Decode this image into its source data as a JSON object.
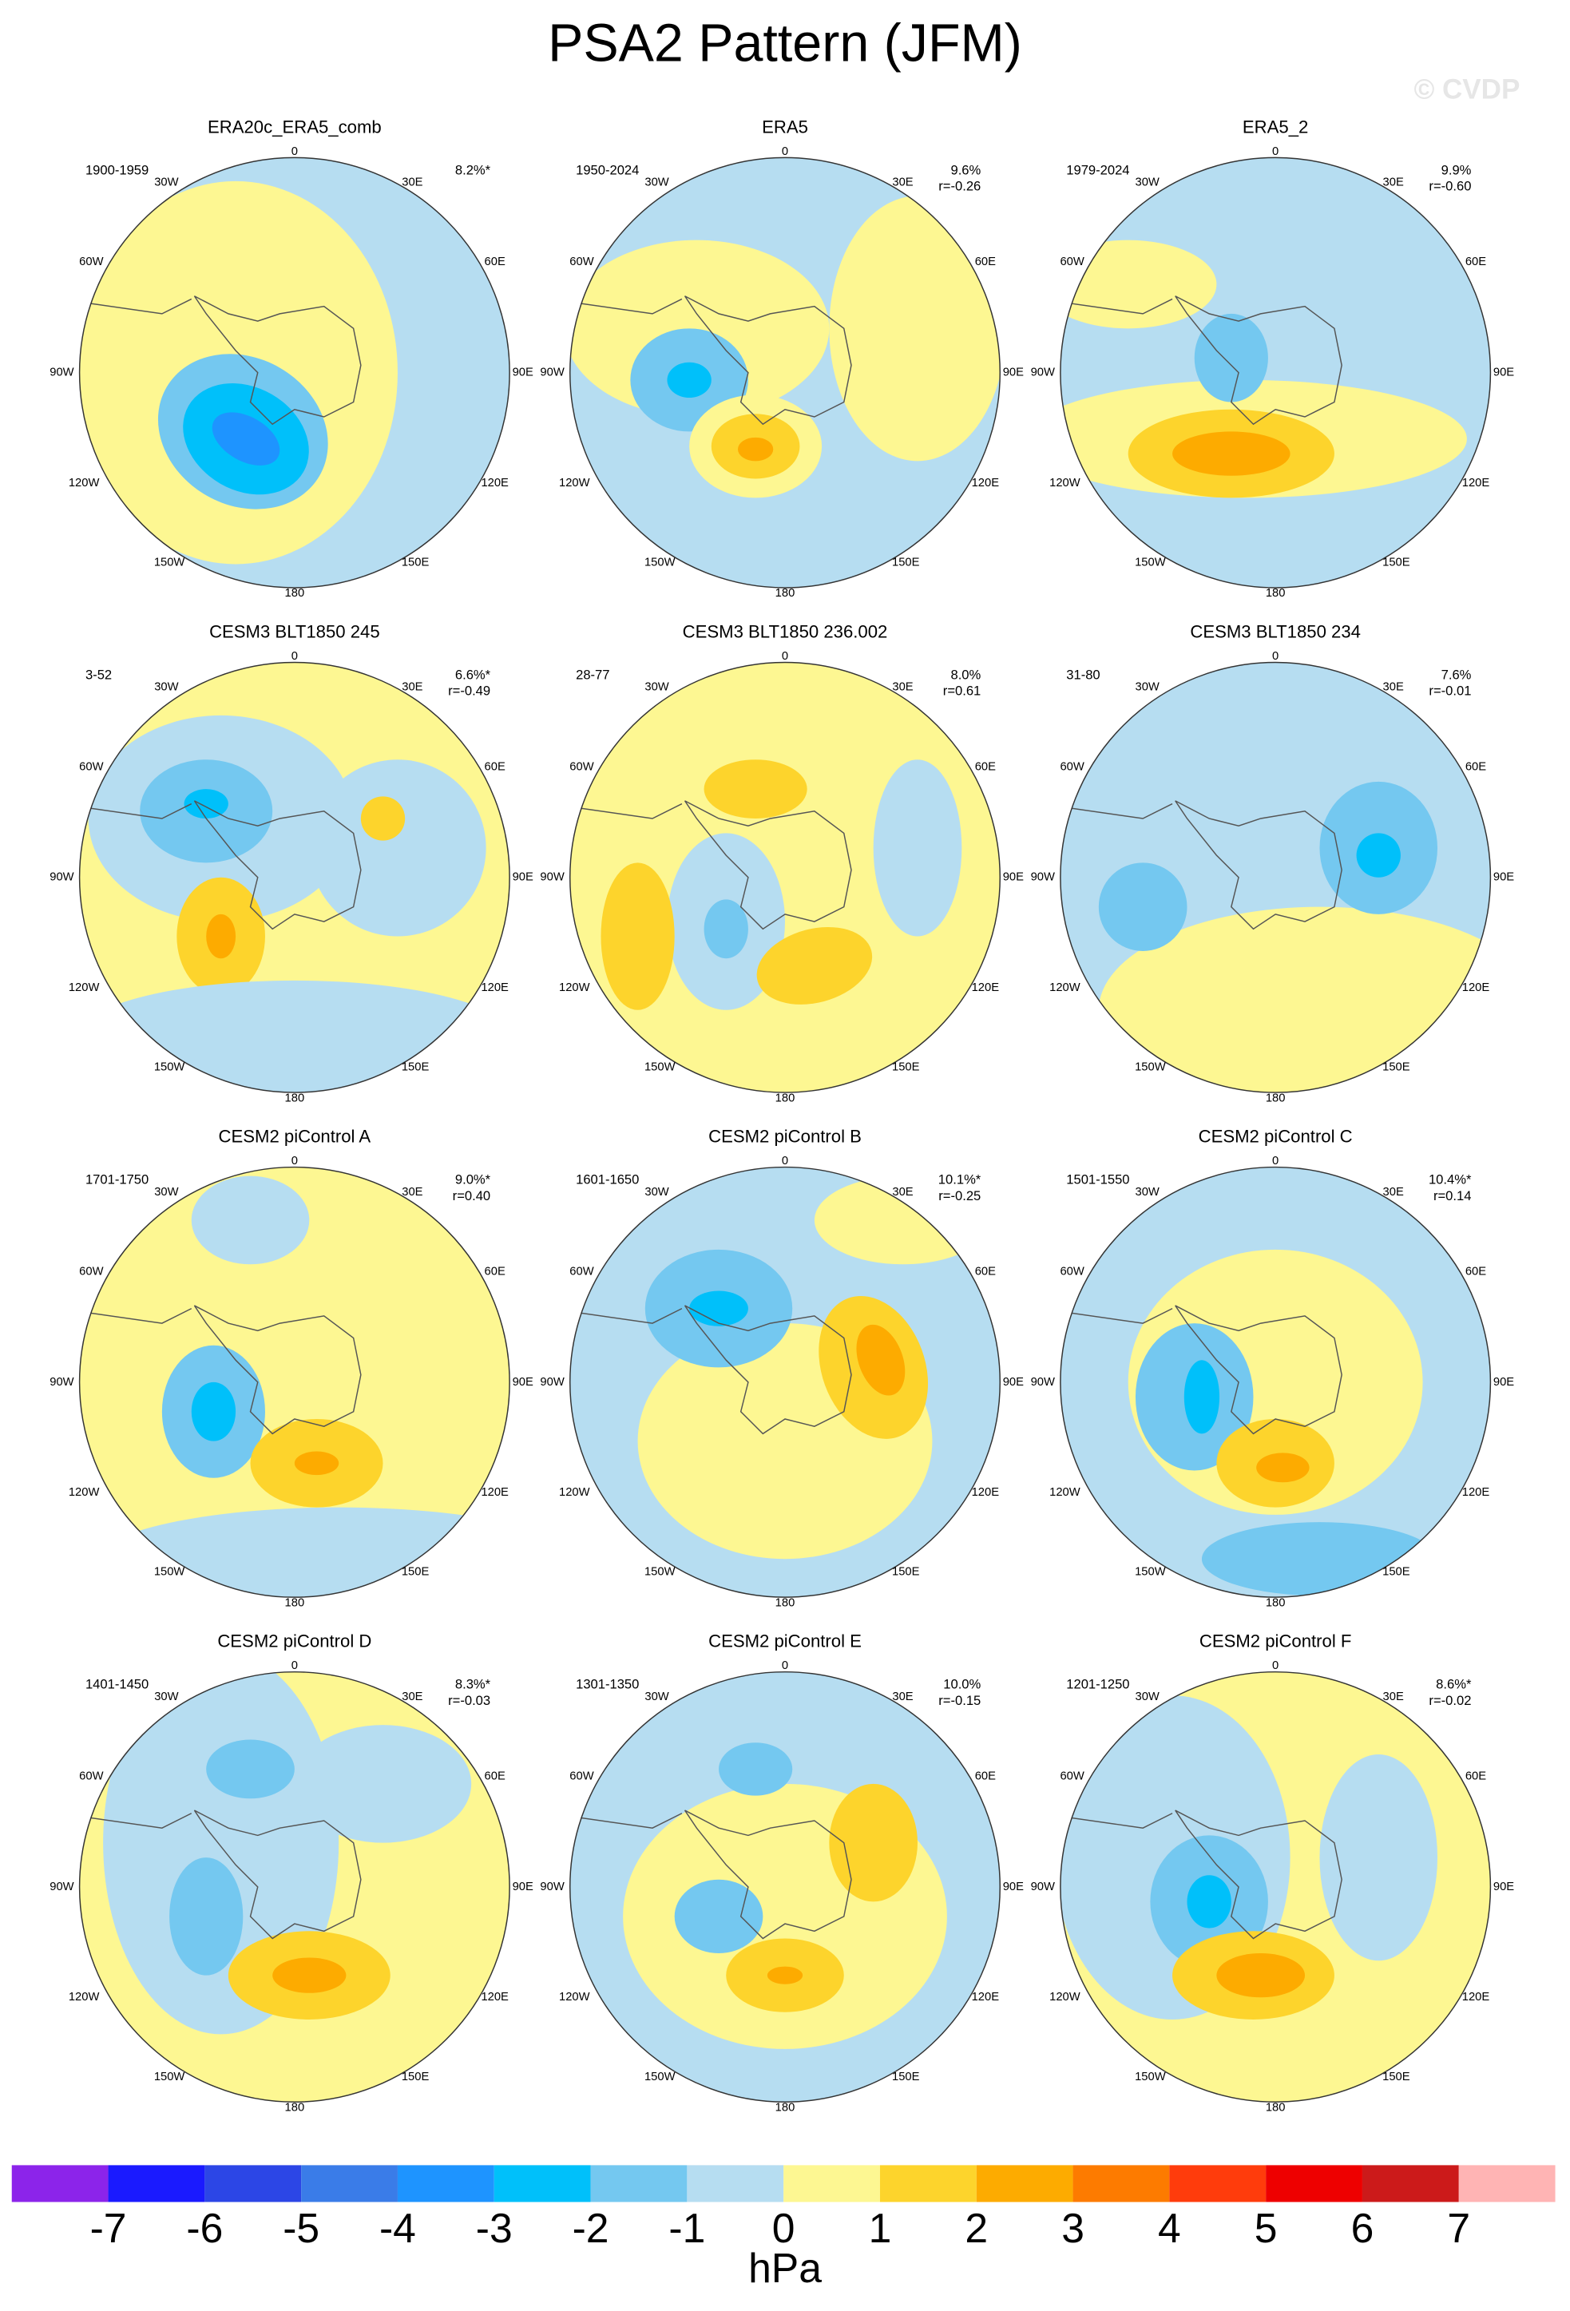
{
  "title": "PSA2 Pattern (JFM)",
  "watermark": "© CVDP",
  "longitude_labels": [
    "0",
    "30E",
    "60E",
    "90E",
    "120E",
    "150E",
    "180",
    "150W",
    "120W",
    "90W",
    "60W",
    "30W"
  ],
  "panels": [
    {
      "title": "ERA20c_ERA5_comb",
      "period": "1900-1959",
      "pct": "8.2%*"
    },
    {
      "title": "ERA5",
      "period": "1950-2024",
      "pct": "9.6%",
      "r": "r=-0.26"
    },
    {
      "title": "ERA5_2",
      "period": "1979-2024",
      "pct": "9.9%",
      "r": "r=-0.60"
    },
    {
      "title": "CESM3 BLT1850 245",
      "period": "3-52",
      "pct": "6.6%*",
      "r": "r=-0.49"
    },
    {
      "title": "CESM3 BLT1850 236.002",
      "period": "28-77",
      "pct": "8.0%",
      "r": "r=0.61"
    },
    {
      "title": "CESM3 BLT1850 234",
      "period": "31-80",
      "pct": "7.6%",
      "r": "r=-0.01"
    },
    {
      "title": "CESM2 piControl A",
      "period": "1701-1750",
      "pct": "9.0%*",
      "r": "r=0.40"
    },
    {
      "title": "CESM2 piControl B",
      "period": "1601-1650",
      "pct": "10.1%*",
      "r": "r=-0.25"
    },
    {
      "title": "CESM2 piControl C",
      "period": "1501-1550",
      "pct": "10.4%*",
      "r": "r=0.14"
    },
    {
      "title": "CESM2 piControl D",
      "period": "1401-1450",
      "pct": "8.3%*",
      "r": "r=-0.03"
    },
    {
      "title": "CESM2 piControl E",
      "period": "1301-1350",
      "pct": "10.0%",
      "r": "r=-0.15"
    },
    {
      "title": "CESM2 piControl F",
      "period": "1201-1250",
      "pct": "8.6%*",
      "r": "r=-0.02"
    }
  ],
  "colorbar": {
    "colors": [
      "#8c24ea",
      "#1a1aff",
      "#2c46e6",
      "#3a7ce8",
      "#1e94ff",
      "#00c0fa",
      "#74c8f0",
      "#b6ddf1",
      "#fdf792",
      "#fdd42c",
      "#fdab00",
      "#fd7b00",
      "#ff3c0c",
      "#ee0000",
      "#cc1a1a",
      "#ffb4b4"
    ],
    "ticks": [
      -7,
      -6,
      -5,
      -4,
      -3,
      -2,
      -1,
      0,
      1,
      2,
      3,
      4,
      5,
      6,
      7
    ],
    "label": "hPa"
  }
}
